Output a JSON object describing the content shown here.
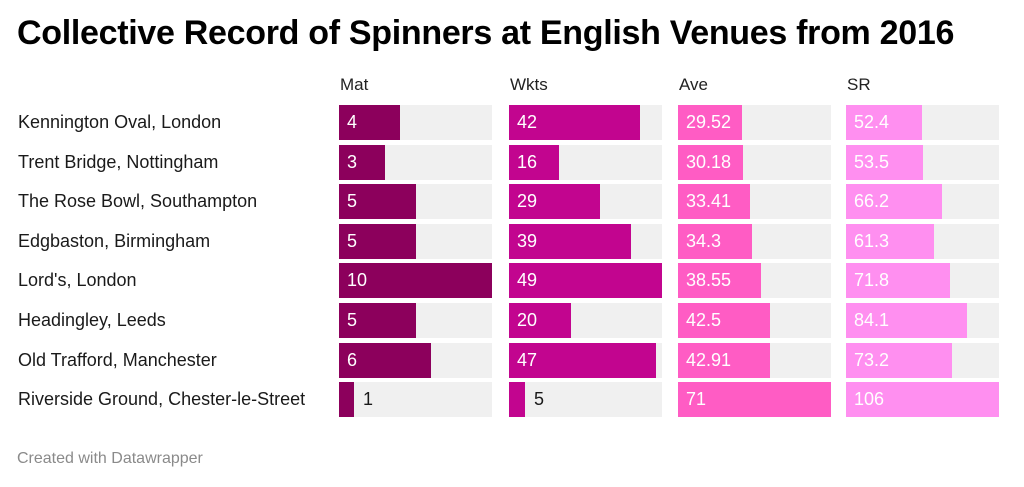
{
  "title": "Collective Record of Spinners at English Venues from 2016",
  "footer": "Created with Datawrapper",
  "chart_data": {
    "type": "bar",
    "title": "Collective Record of Spinners at English Venues from 2016",
    "categories": [
      "Kennington Oval, London",
      "Trent Bridge, Nottingham",
      "The Rose Bowl, Southampton",
      "Edgbaston, Birmingham",
      "Lord's, London",
      "Headingley, Leeds",
      "Old Trafford, Manchester",
      "Riverside Ground, Chester-le-Street"
    ],
    "series": [
      {
        "name": "Mat",
        "color": "#8c005c",
        "max": 10,
        "labels": [
          "4",
          "3",
          "5",
          "5",
          "10",
          "5",
          "6",
          "1"
        ],
        "values": [
          4,
          3,
          5,
          5,
          10,
          5,
          6,
          1
        ]
      },
      {
        "name": "Wkts",
        "color": "#c2058f",
        "max": 49,
        "labels": [
          "42",
          "16",
          "29",
          "39",
          "49",
          "20",
          "47",
          "5"
        ],
        "values": [
          42,
          16,
          29,
          39,
          49,
          20,
          47,
          5
        ]
      },
      {
        "name": "Ave",
        "color": "#ff5cc4",
        "max": 71,
        "labels": [
          "29.52",
          "30.18",
          "33.41",
          "34.3",
          "38.55",
          "42.5",
          "42.91",
          "71"
        ],
        "values": [
          29.52,
          30.18,
          33.41,
          34.3,
          38.55,
          42.5,
          42.91,
          71
        ]
      },
      {
        "name": "SR",
        "color": "#ff8ff0",
        "max": 106,
        "labels": [
          "52.4",
          "53.5",
          "66.2",
          "61.3",
          "71.8",
          "84.1",
          "73.2",
          "106"
        ],
        "values": [
          52.4,
          53.5,
          66.2,
          61.3,
          71.8,
          84.1,
          73.2,
          106
        ]
      }
    ]
  }
}
